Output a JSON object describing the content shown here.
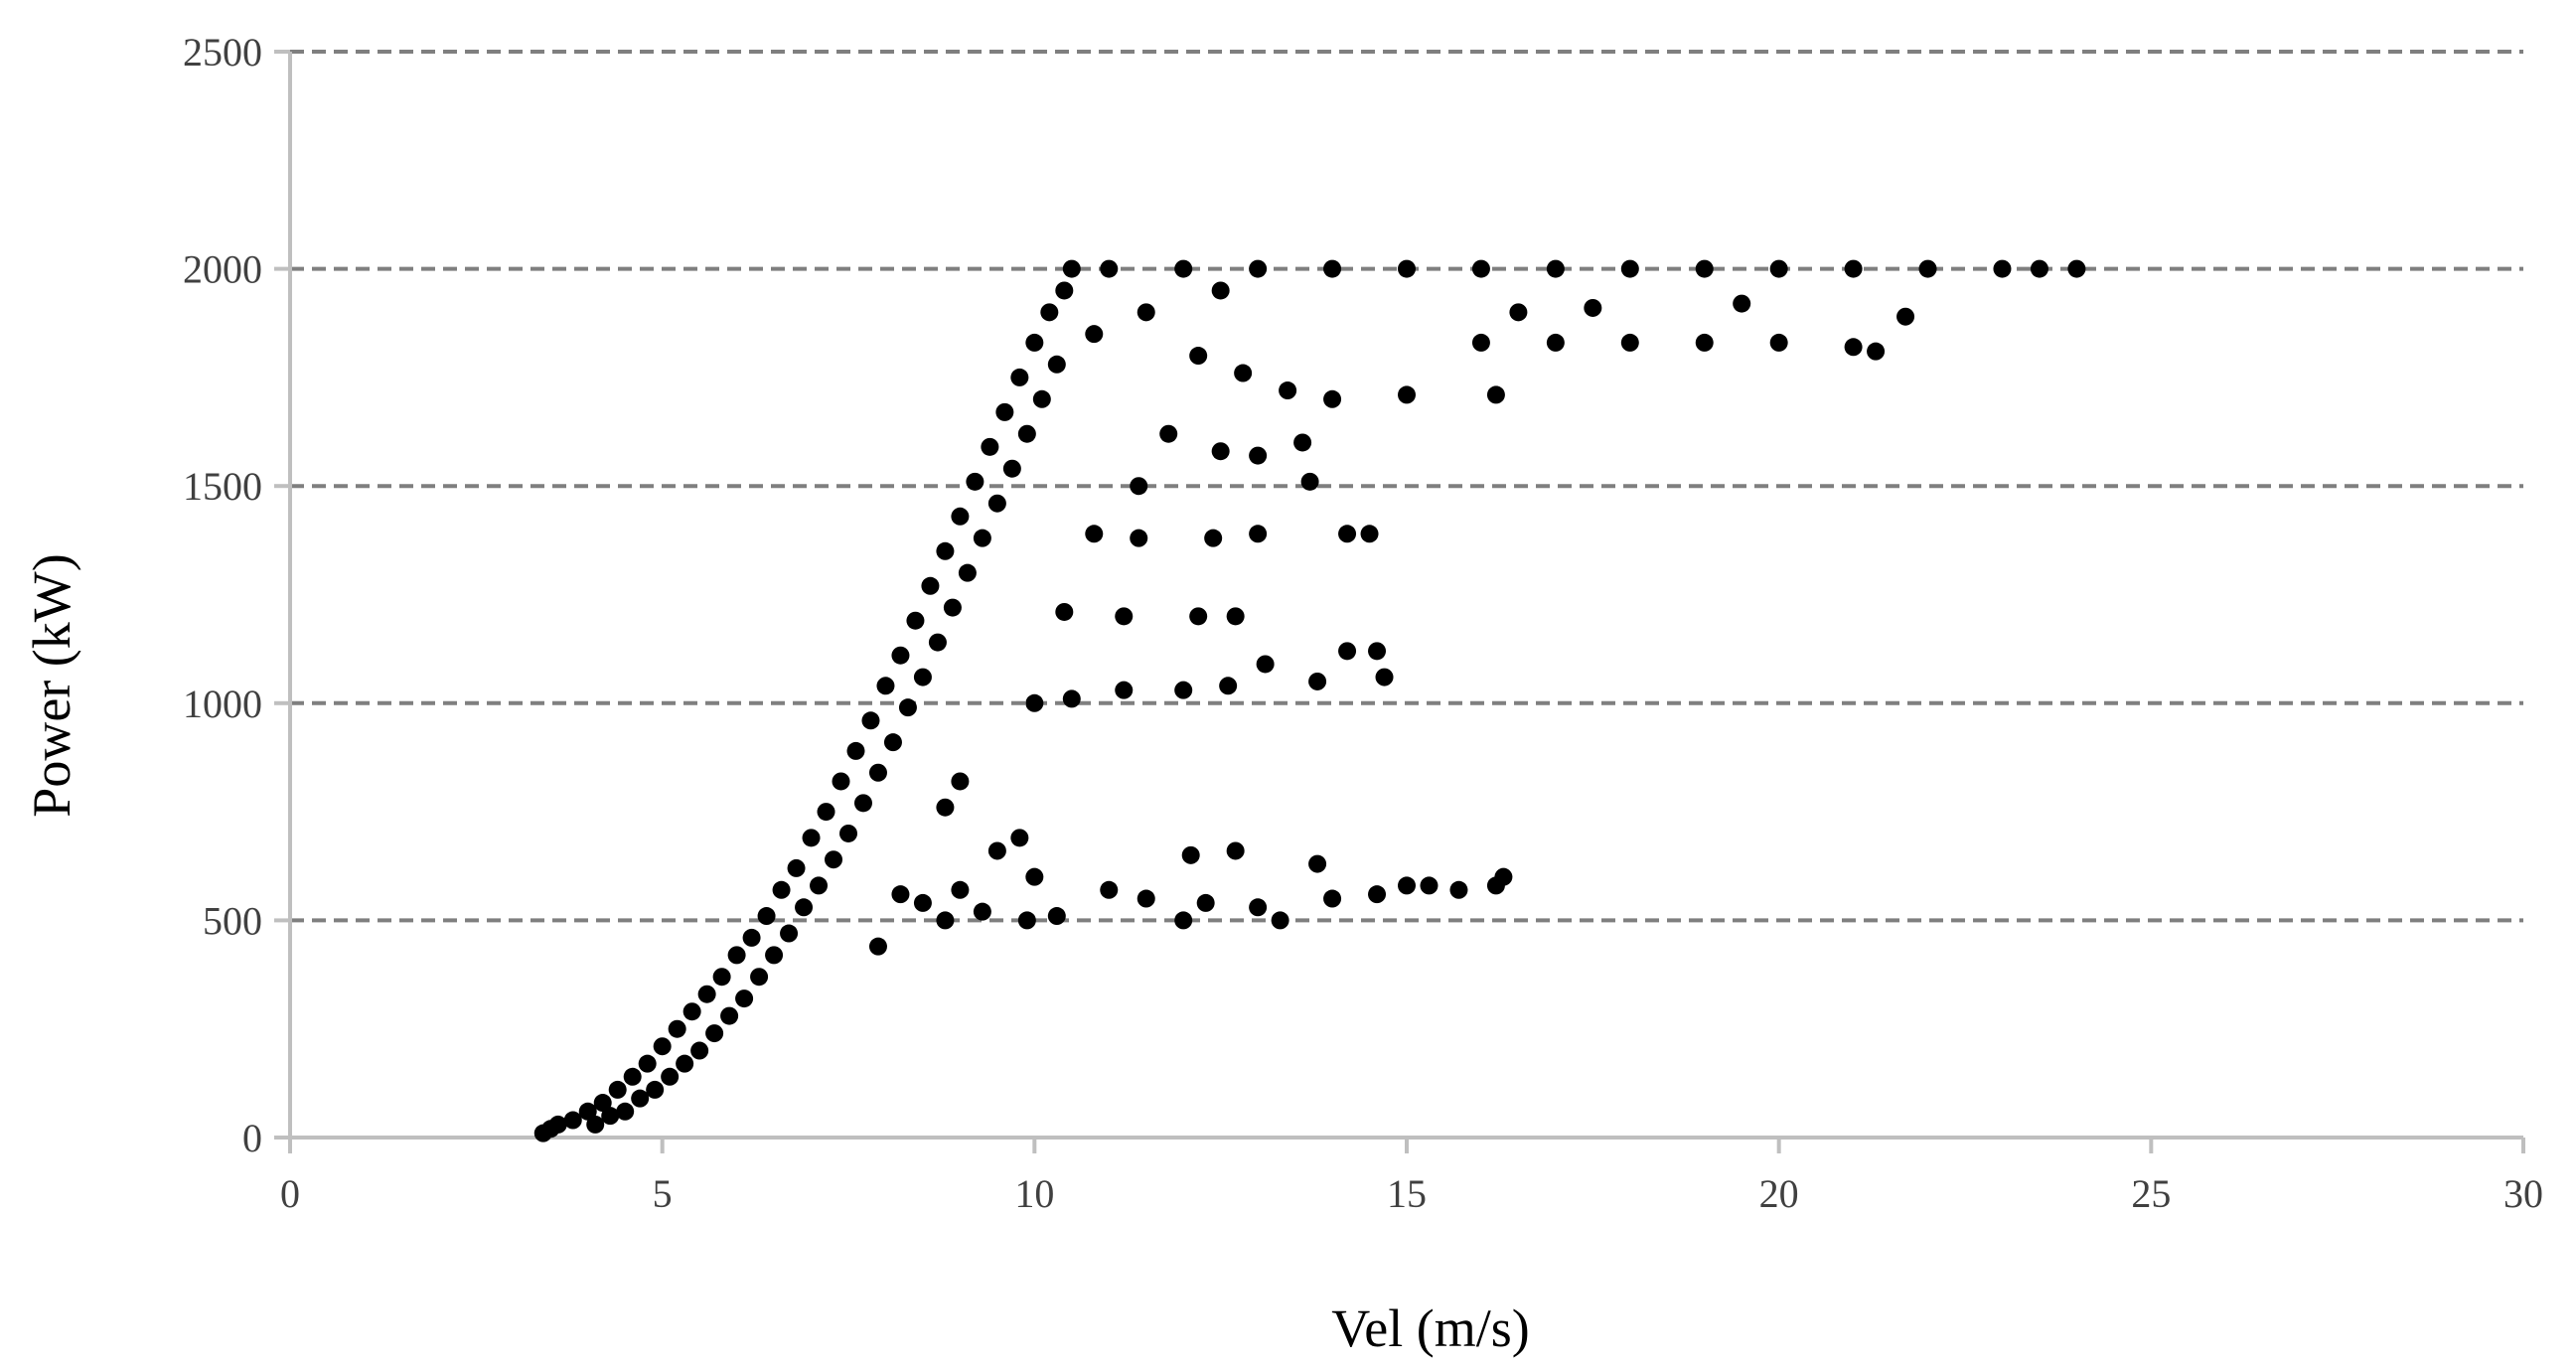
{
  "chart_data": {
    "type": "scatter",
    "xlabel": "Vel (m/s)",
    "ylabel": "Power (kW)",
    "xlim": [
      0,
      30
    ],
    "ylim": [
      0,
      2500
    ],
    "xticks": [
      0,
      5,
      10,
      15,
      20,
      25,
      30
    ],
    "yticks": [
      0,
      500,
      1000,
      1500,
      2000,
      2500
    ],
    "grid": "horizontal-dashed",
    "legend": "none",
    "marker_color": "#000000",
    "series": [
      {
        "points": [
          [
            3.4,
            10
          ],
          [
            3.5,
            20
          ],
          [
            3.6,
            30
          ],
          [
            3.8,
            40
          ],
          [
            4.0,
            60
          ],
          [
            4.1,
            30
          ],
          [
            4.2,
            80
          ],
          [
            4.3,
            50
          ],
          [
            4.4,
            110
          ],
          [
            4.5,
            60
          ],
          [
            4.6,
            140
          ],
          [
            4.7,
            90
          ],
          [
            4.8,
            170
          ],
          [
            4.9,
            110
          ],
          [
            5.0,
            210
          ],
          [
            5.1,
            140
          ],
          [
            5.2,
            250
          ],
          [
            5.3,
            170
          ],
          [
            5.4,
            290
          ],
          [
            5.5,
            200
          ],
          [
            5.6,
            330
          ],
          [
            5.7,
            240
          ],
          [
            5.8,
            370
          ],
          [
            5.9,
            280
          ],
          [
            6.0,
            420
          ],
          [
            6.1,
            320
          ],
          [
            6.2,
            460
          ],
          [
            6.3,
            370
          ],
          [
            6.4,
            510
          ],
          [
            6.5,
            420
          ],
          [
            6.6,
            570
          ],
          [
            6.7,
            470
          ],
          [
            6.8,
            620
          ],
          [
            6.9,
            530
          ],
          [
            7.0,
            690
          ],
          [
            7.1,
            580
          ],
          [
            7.2,
            750
          ],
          [
            7.3,
            640
          ],
          [
            7.4,
            820
          ],
          [
            7.5,
            700
          ],
          [
            7.6,
            890
          ],
          [
            7.7,
            770
          ],
          [
            7.8,
            960
          ],
          [
            7.9,
            840
          ],
          [
            8.0,
            1040
          ],
          [
            8.1,
            910
          ],
          [
            8.2,
            1110
          ],
          [
            8.3,
            990
          ],
          [
            8.4,
            1190
          ],
          [
            8.5,
            1060
          ],
          [
            8.6,
            1270
          ],
          [
            8.7,
            1140
          ],
          [
            8.8,
            1350
          ],
          [
            8.9,
            1220
          ],
          [
            9.0,
            1430
          ],
          [
            9.1,
            1300
          ],
          [
            9.2,
            1510
          ],
          [
            9.3,
            1380
          ],
          [
            9.4,
            1590
          ],
          [
            9.5,
            1460
          ],
          [
            9.6,
            1670
          ],
          [
            9.7,
            1540
          ],
          [
            9.8,
            1750
          ],
          [
            9.9,
            1620
          ],
          [
            10.0,
            1830
          ],
          [
            10.1,
            1700
          ],
          [
            10.2,
            1900
          ],
          [
            10.3,
            1780
          ],
          [
            10.4,
            1950
          ],
          [
            10.5,
            2000
          ],
          [
            10.8,
            1850
          ],
          [
            11.0,
            2000
          ],
          [
            11.5,
            1900
          ],
          [
            12.0,
            2000
          ],
          [
            12.5,
            1950
          ],
          [
            13.0,
            2000
          ],
          [
            14.0,
            2000
          ],
          [
            15.0,
            2000
          ],
          [
            16.0,
            2000
          ],
          [
            17.0,
            2000
          ],
          [
            18.0,
            2000
          ],
          [
            19.0,
            2000
          ],
          [
            20.0,
            2000
          ],
          [
            21.0,
            2000
          ],
          [
            22.0,
            2000
          ],
          [
            23.0,
            2000
          ],
          [
            23.5,
            2000
          ],
          [
            24.0,
            2000
          ],
          [
            12.2,
            1800
          ],
          [
            12.8,
            1760
          ],
          [
            13.4,
            1720
          ],
          [
            14.0,
            1700
          ],
          [
            15.0,
            1710
          ],
          [
            16.2,
            1710
          ],
          [
            16.0,
            1830
          ],
          [
            17.0,
            1830
          ],
          [
            18.0,
            1830
          ],
          [
            19.0,
            1830
          ],
          [
            20.0,
            1830
          ],
          [
            21.0,
            1820
          ],
          [
            21.3,
            1810
          ],
          [
            16.5,
            1900
          ],
          [
            17.5,
            1910
          ],
          [
            19.5,
            1920
          ],
          [
            21.7,
            1890
          ],
          [
            11.8,
            1620
          ],
          [
            12.5,
            1580
          ],
          [
            13.0,
            1570
          ],
          [
            13.6,
            1600
          ],
          [
            13.7,
            1510
          ],
          [
            11.4,
            1500
          ],
          [
            10.8,
            1390
          ],
          [
            11.4,
            1380
          ],
          [
            12.4,
            1380
          ],
          [
            13.0,
            1390
          ],
          [
            14.2,
            1390
          ],
          [
            14.5,
            1390
          ],
          [
            10.4,
            1210
          ],
          [
            11.2,
            1200
          ],
          [
            12.2,
            1200
          ],
          [
            12.7,
            1200
          ],
          [
            10.0,
            1000
          ],
          [
            10.5,
            1010
          ],
          [
            11.2,
            1030
          ],
          [
            12.0,
            1030
          ],
          [
            12.6,
            1040
          ],
          [
            13.1,
            1090
          ],
          [
            13.8,
            1050
          ],
          [
            14.2,
            1120
          ],
          [
            14.6,
            1120
          ],
          [
            14.7,
            1060
          ],
          [
            9.0,
            820
          ],
          [
            8.8,
            760
          ],
          [
            7.9,
            440
          ],
          [
            8.2,
            560
          ],
          [
            8.5,
            540
          ],
          [
            8.8,
            500
          ],
          [
            9.0,
            570
          ],
          [
            9.3,
            520
          ],
          [
            9.5,
            660
          ],
          [
            9.8,
            690
          ],
          [
            9.9,
            500
          ],
          [
            10.0,
            600
          ],
          [
            10.3,
            510
          ],
          [
            11.0,
            570
          ],
          [
            11.5,
            550
          ],
          [
            12.0,
            500
          ],
          [
            12.1,
            650
          ],
          [
            12.3,
            540
          ],
          [
            12.7,
            660
          ],
          [
            13.0,
            530
          ],
          [
            13.3,
            500
          ],
          [
            13.8,
            630
          ],
          [
            14.0,
            550
          ],
          [
            14.6,
            560
          ],
          [
            15.0,
            580
          ],
          [
            15.3,
            580
          ],
          [
            15.7,
            570
          ],
          [
            16.2,
            580
          ],
          [
            16.3,
            600
          ]
        ]
      }
    ]
  }
}
